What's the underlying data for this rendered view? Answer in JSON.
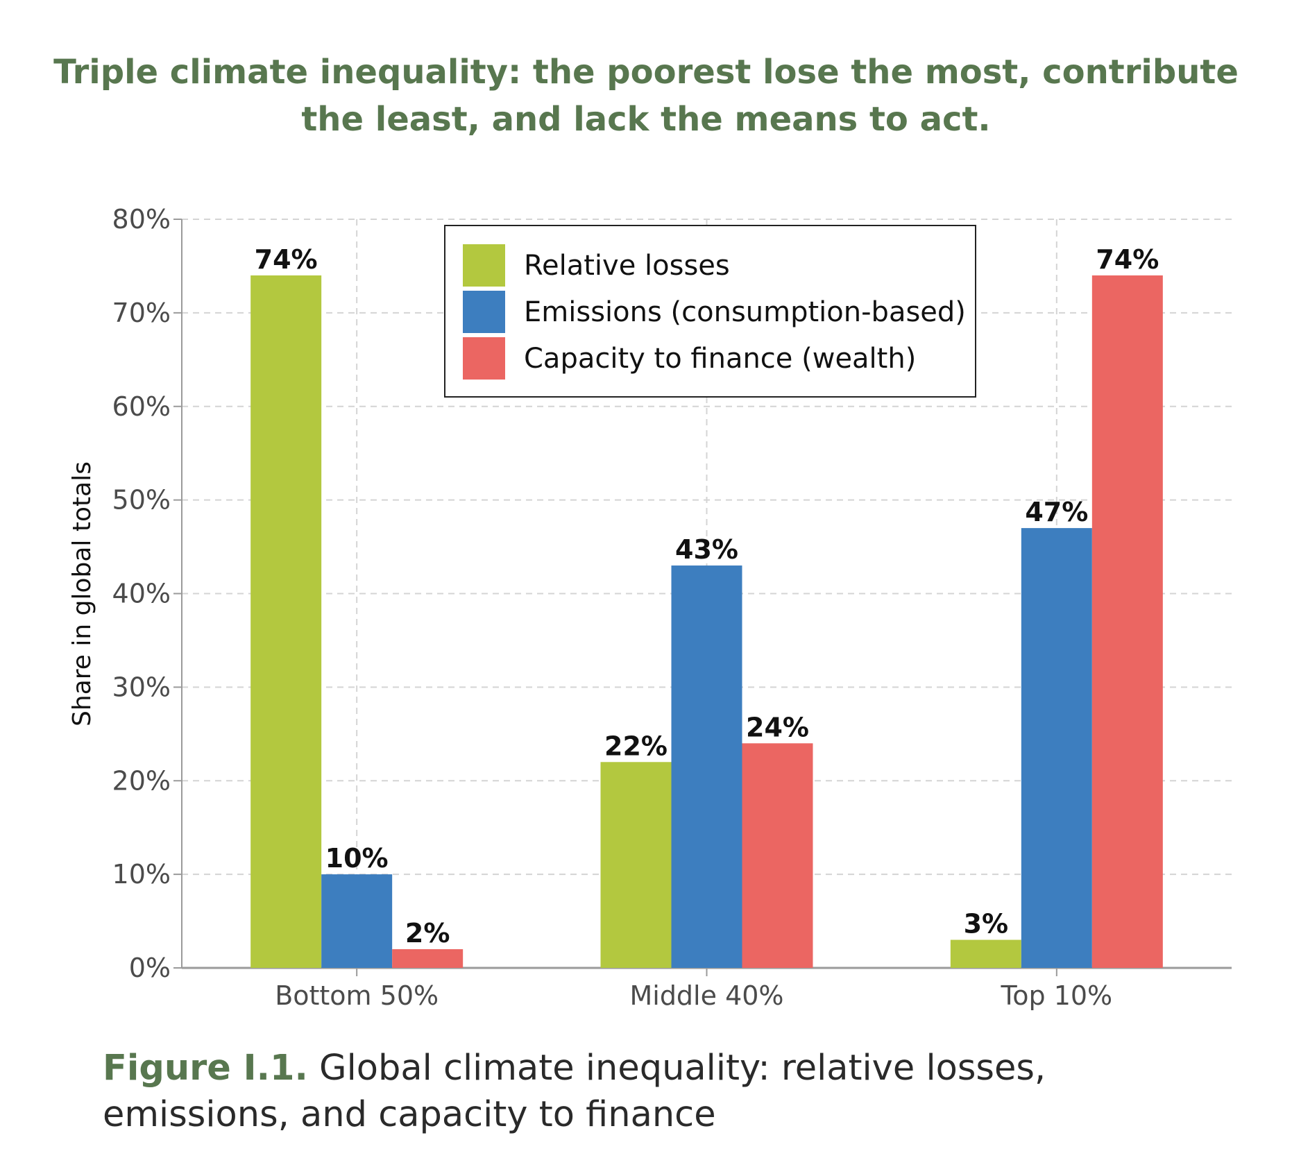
{
  "chart_data": {
    "type": "bar",
    "title": [
      "Triple climate inequality: the poorest lose the most, contribute",
      "the least, and lack the means to act."
    ],
    "xlabel": "",
    "ylabel": "Share in global totals",
    "ylim": [
      0,
      80
    ],
    "yticks": [
      0,
      10,
      20,
      30,
      40,
      50,
      60,
      70,
      80
    ],
    "ytick_labels": [
      "0%",
      "10%",
      "20%",
      "30%",
      "40%",
      "50%",
      "60%",
      "70%",
      "80%"
    ],
    "grid": true,
    "legend_position": "top-center",
    "categories": [
      "Bottom 50%",
      "Middle 40%",
      "Top 10%"
    ],
    "series": [
      {
        "name": "Relative losses",
        "color": "#b3c83f",
        "values": [
          74,
          22,
          3
        ],
        "labels": [
          "74%",
          "22%",
          "3%"
        ]
      },
      {
        "name": "Emissions (consumption-based)",
        "color": "#3d7ebf",
        "values": [
          10,
          43,
          47
        ],
        "labels": [
          "10%",
          "43%",
          "47%"
        ]
      },
      {
        "name": "Capacity to finance (wealth)",
        "color": "#eb6662",
        "values": [
          2,
          24,
          74
        ],
        "labels": [
          "2%",
          "24%",
          "74%"
        ]
      }
    ]
  },
  "caption": {
    "prefix": "Figure I.1.",
    "text": " Global climate inequality: relative losses, emissions, and capacity to finance"
  }
}
